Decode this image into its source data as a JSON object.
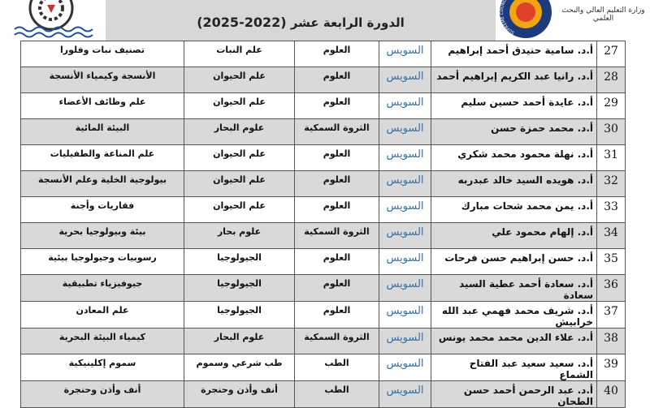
{
  "header": {
    "subtitle_prefix": "الدورة الرابعة عشر",
    "subtitle_years": "(2022-2025)",
    "ministry_logo_text": "وزارة التعليم العالي والبحث العلمي",
    "council_logo_text": "SUPREME COUNCIL OF UNIVERSITIES",
    "left_logo_year": "2012"
  },
  "rows": [
    {
      "num": "27",
      "name": "أ.د. سامية حنيدق أحمد إبراهيم",
      "university": "السويس",
      "faculty": "العلوم",
      "department": "علم النبات",
      "specialization": "تصنيف نبات وفلورا"
    },
    {
      "num": "28",
      "name": "أ.د. رانيا عبد الكريم إبراهيم أحمد",
      "university": "السويس",
      "faculty": "العلوم",
      "department": "علم الحيوان",
      "specialization": "الأنسجة وكيمياء الأنسجة"
    },
    {
      "num": "29",
      "name": "أ.د. عايدة أحمد حسين سليم",
      "university": "السويس",
      "faculty": "العلوم",
      "department": "علم الحيوان",
      "specialization": "علم وظائف الأعضاء"
    },
    {
      "num": "30",
      "name": "أ.د. محمد حمزة حسن",
      "university": "السويس",
      "faculty": "الثروة السمكية",
      "department": "علوم البحار",
      "specialization": "البيئة المائية"
    },
    {
      "num": "31",
      "name": "أ.د. نهلة محمود محمد شكري",
      "university": "السويس",
      "faculty": "العلوم",
      "department": "علم الحيوان",
      "specialization": "علم المناعة والطفيليات"
    },
    {
      "num": "32",
      "name": "أ.د. هويده السيد خالد عبدربه",
      "university": "السويس",
      "faculty": "العلوم",
      "department": "علم الحيوان",
      "specialization": "بيولوجية الخلية وعلم الأنسجة"
    },
    {
      "num": "33",
      "name": "أ.د. يمن محمد شحات مبارك",
      "university": "السويس",
      "faculty": "العلوم",
      "department": "علم الحيوان",
      "specialization": "فقاريات وأجنة"
    },
    {
      "num": "34",
      "name": "أ.د. إلهام محمود علي",
      "university": "السويس",
      "faculty": "الثروة السمكية",
      "department": "علوم بحار",
      "specialization": "بيئة وبيولوجيا بحرية"
    },
    {
      "num": "35",
      "name": "أ.د. حسن إبراهيم حسن فرحات",
      "university": "السويس",
      "faculty": "العلوم",
      "department": "الجيولوجيا",
      "specialization": "رسوبيات وجيولوجيا بيئية"
    },
    {
      "num": "36",
      "name": "أ.د. سعادة أحمد عطية السيد سعادة",
      "university": "السويس",
      "faculty": "العلوم",
      "department": "الجيولوجيا",
      "specialization": "جيوفيزياء تطبيقية"
    },
    {
      "num": "37",
      "name": "أ.د. شريف محمد فهمي عبد الله خرابيش",
      "university": "السويس",
      "faculty": "العلوم",
      "department": "الجيولوجيا",
      "specialization": "علم المعادن"
    },
    {
      "num": "38",
      "name": "أ.د. علاء الدين محمد محمد يونس",
      "university": "السويس",
      "faculty": "الثروة السمكية",
      "department": "علوم البحار",
      "specialization": "كيمياء البيئة البحرية"
    },
    {
      "num": "39",
      "name": "أ.د. سعيد سعيد عبد الفتاح الشماع",
      "university": "السويس",
      "faculty": "الطب",
      "department": "طب شرعي وسموم",
      "specialization": "سموم إكلينيكية"
    },
    {
      "num": "40",
      "name": "أ.د. عبد الرحمن أحمد حسن الطحان",
      "university": "السويس",
      "faculty": "الطب",
      "department": "أنف وأذن وحنجرة",
      "specialization": "أنف وأذن وحنجرة"
    }
  ]
}
